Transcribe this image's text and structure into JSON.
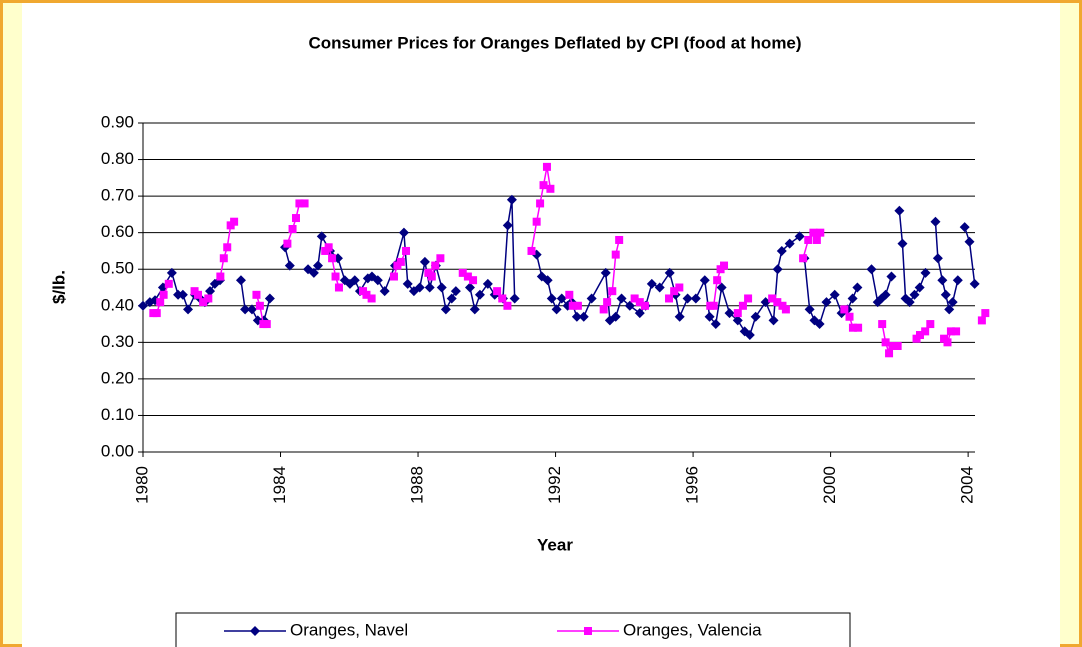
{
  "chart_data": {
    "type": "line",
    "title": "Consumer Prices for Oranges Deflated by CPI (food at home)",
    "x_label": "Year",
    "y_label": "$/lb.",
    "xlim": [
      1980,
      2004.2
    ],
    "xticks": [
      1980,
      1984,
      1988,
      1992,
      1996,
      2000,
      2004
    ],
    "ylim": [
      0,
      0.9
    ],
    "yticks": [
      {
        "value": 0,
        "label": "0.00"
      },
      {
        "value": 0.1,
        "label": "0.10"
      },
      {
        "value": 0.2,
        "label": "0.20"
      },
      {
        "value": 0.3,
        "label": "0.30"
      },
      {
        "value": 0.4,
        "label": "0.40"
      },
      {
        "value": 0.5,
        "label": "0.50"
      },
      {
        "value": 0.6,
        "label": "0.60"
      },
      {
        "value": 0.7,
        "label": "0.70"
      },
      {
        "value": 0.8,
        "label": "0.80"
      },
      {
        "value": 0.9,
        "label": "0.90"
      }
    ],
    "grid": true,
    "legend_position": "bottom",
    "series": [
      {
        "name": "Oranges, Navel",
        "color": "#000080",
        "marker": "diamond",
        "x": [
          1980,
          1980.2,
          1980.35,
          1980.58,
          1980.84,
          1981.02,
          1981.16,
          1981.31,
          1981.51,
          1981.66,
          1981.8,
          1981.95,
          1982.09,
          1982.24,
          null,
          1982.85,
          1982.97,
          1983.17,
          1983.34,
          1983.52,
          1983.69,
          null,
          1984.13,
          1984.27,
          null,
          1984.8,
          1984.97,
          1985.09,
          1985.2,
          1985.44,
          1985.67,
          1985.87,
          1986.02,
          1986.16,
          1986.31,
          1986.54,
          1986.66,
          1986.83,
          1987.03,
          1987.33,
          1987.59,
          1987.7,
          1987.88,
          1988.05,
          1988.2,
          1988.34,
          1988.52,
          1988.69,
          1988.81,
          1988.98,
          1989.1,
          null,
          1989.51,
          1989.65,
          1989.8,
          1990.03,
          1990.23,
          1990.47,
          1990.61,
          1990.73,
          1990.81,
          null,
          1991.45,
          1991.6,
          1991.77,
          1991.89,
          1992.03,
          1992.18,
          1992.35,
          1992.47,
          1992.62,
          1992.82,
          1993.05,
          1993.46,
          1993.58,
          1993.75,
          1993.92,
          1994.16,
          1994.45,
          1994.62,
          1994.8,
          1995.03,
          1995.32,
          1995.49,
          1995.61,
          1995.84,
          1996.08,
          1996.34,
          1996.48,
          1996.66,
          1996.83,
          1997.06,
          1997.3,
          1997.5,
          1997.65,
          1997.82,
          1998.11,
          1998.34,
          1998.46,
          1998.58,
          1998.81,
          1999.1,
          null,
          1999.24,
          1999.39,
          1999.53,
          1999.68,
          1999.88,
          2000.12,
          2000.32,
          2000.49,
          2000.64,
          2000.78,
          null,
          2001.19,
          2001.37,
          2001.48,
          2001.6,
          2001.77,
          null,
          2002.0,
          2002.09,
          2002.18,
          2002.3,
          2002.44,
          2002.59,
          2002.76,
          null,
          2003.05,
          2003.12,
          2003.25,
          2003.35,
          2003.45,
          2003.55,
          2003.7,
          null,
          2003.9,
          2004.04,
          2004.19
        ],
        "values": [
          0.4,
          0.41,
          0.415,
          0.45,
          0.49,
          0.43,
          0.43,
          0.39,
          0.43,
          0.42,
          0.41,
          0.44,
          0.46,
          0.47,
          null,
          0.47,
          0.39,
          0.39,
          0.36,
          0.36,
          0.42,
          null,
          0.56,
          0.51,
          null,
          0.5,
          0.49,
          0.51,
          0.59,
          0.55,
          0.53,
          0.47,
          0.46,
          0.47,
          0.44,
          0.475,
          0.48,
          0.47,
          0.44,
          0.51,
          0.6,
          0.46,
          0.44,
          0.45,
          0.52,
          0.45,
          0.51,
          0.45,
          0.39,
          0.42,
          0.44,
          null,
          0.45,
          0.39,
          0.43,
          0.46,
          0.43,
          0.42,
          0.62,
          0.69,
          0.42,
          null,
          0.54,
          0.48,
          0.47,
          0.42,
          0.39,
          0.42,
          0.4,
          0.41,
          0.37,
          0.37,
          0.42,
          0.49,
          0.36,
          0.37,
          0.42,
          0.4,
          0.38,
          0.4,
          0.46,
          0.45,
          0.49,
          0.43,
          0.37,
          0.42,
          0.42,
          0.47,
          0.37,
          0.35,
          0.45,
          0.38,
          0.36,
          0.33,
          0.32,
          0.37,
          0.41,
          0.36,
          0.5,
          0.55,
          0.57,
          0.59,
          null,
          0.53,
          0.39,
          0.36,
          0.35,
          0.41,
          0.43,
          0.38,
          0.39,
          0.42,
          0.45,
          null,
          0.5,
          0.41,
          0.42,
          0.43,
          0.48,
          null,
          0.66,
          0.57,
          0.42,
          0.41,
          0.43,
          0.45,
          0.49,
          null,
          0.63,
          0.53,
          0.47,
          0.43,
          0.39,
          0.41,
          0.47,
          null,
          0.615,
          0.575,
          0.46
        ]
      },
      {
        "name": "Oranges, Valencia",
        "color": "#FF00FF",
        "marker": "square",
        "x": [
          1980.3,
          1980.4,
          1980.5,
          1980.6,
          1980.75,
          null,
          1981.5,
          1981.6,
          1981.75,
          1981.9,
          null,
          1982.25,
          1982.35,
          1982.45,
          1982.55,
          1982.65,
          null,
          1983.3,
          1983.4,
          1983.5,
          1983.6,
          null,
          1984.2,
          1984.35,
          1984.45,
          1984.55,
          1984.7,
          null,
          1985.3,
          1985.4,
          1985.5,
          1985.6,
          1985.7,
          null,
          1986.4,
          1986.5,
          1986.65,
          null,
          1987.3,
          1987.4,
          1987.5,
          1987.65,
          null,
          1988.3,
          1988.4,
          1988.5,
          1988.65,
          null,
          1989.3,
          1989.45,
          1989.6,
          null,
          1990.3,
          1990.45,
          1990.6,
          null,
          1991.3,
          1991.45,
          1991.55,
          1991.65,
          1991.75,
          1991.85,
          null,
          1992.4,
          1992.5,
          1992.65,
          null,
          1993.4,
          1993.5,
          1993.65,
          1993.75,
          1993.85,
          null,
          1994.3,
          1994.45,
          1994.6,
          null,
          1995.3,
          1995.45,
          1995.6,
          null,
          1996.5,
          1996.6,
          1996.7,
          1996.8,
          1996.9,
          null,
          1997.3,
          1997.45,
          1997.6,
          null,
          1998.3,
          1998.45,
          1998.6,
          1998.7,
          null,
          1999.2,
          1999.35,
          1999.5,
          1999.6,
          1999.7,
          null,
          2000.4,
          2000.55,
          2000.65,
          2000.8,
          null,
          2001.5,
          2001.6,
          2001.7,
          2001.8,
          2001.95,
          null,
          2002.5,
          2002.6,
          2002.75,
          2002.9,
          null,
          2003.3,
          2003.4,
          2003.5,
          2003.65,
          null,
          2004.4,
          2004.5
        ],
        "values": [
          0.38,
          0.38,
          0.41,
          0.43,
          0.46,
          null,
          0.44,
          0.43,
          0.41,
          0.42,
          null,
          0.48,
          0.53,
          0.56,
          0.62,
          0.63,
          null,
          0.43,
          0.4,
          0.35,
          0.35,
          null,
          0.57,
          0.61,
          0.64,
          0.68,
          0.68,
          null,
          0.55,
          0.56,
          0.53,
          0.48,
          0.45,
          null,
          0.44,
          0.43,
          0.42,
          null,
          0.48,
          0.51,
          0.52,
          0.55,
          null,
          0.49,
          0.48,
          0.51,
          0.53,
          null,
          0.49,
          0.48,
          0.47,
          null,
          0.44,
          0.42,
          0.4,
          null,
          0.55,
          0.63,
          0.68,
          0.73,
          0.78,
          0.72,
          null,
          0.43,
          0.4,
          0.4,
          null,
          0.39,
          0.41,
          0.44,
          0.54,
          0.58,
          null,
          0.42,
          0.41,
          0.4,
          null,
          0.42,
          0.44,
          0.45,
          null,
          0.4,
          0.4,
          0.47,
          0.5,
          0.51,
          null,
          0.38,
          0.4,
          0.42,
          null,
          0.42,
          0.41,
          0.4,
          0.39,
          null,
          0.53,
          0.58,
          0.6,
          0.58,
          0.6,
          null,
          0.39,
          0.37,
          0.34,
          0.34,
          null,
          0.35,
          0.3,
          0.27,
          0.29,
          0.29,
          null,
          0.31,
          0.32,
          0.33,
          0.35,
          null,
          0.31,
          0.3,
          0.33,
          0.33,
          null,
          0.36,
          0.38
        ]
      }
    ]
  }
}
